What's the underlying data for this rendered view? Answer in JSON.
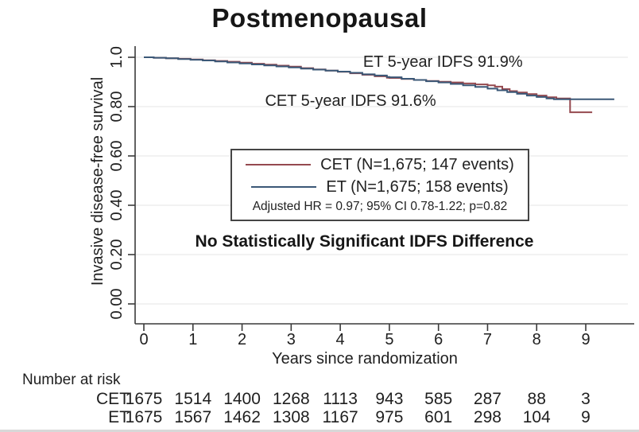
{
  "header": {
    "title": "Postmenopausal"
  },
  "colors": {
    "cet": "#95494f",
    "et": "#3b5877",
    "grid": "#ebebeb",
    "axis": "#3a3a3a",
    "text": "#1f1f1f"
  },
  "chart_data": {
    "type": "line",
    "subtype": "kaplan-meier-step",
    "title": "Postmenopausal",
    "xlabel": "Years since randomization",
    "ylabel": "Invasive disease-free survival",
    "xlim": [
      0,
      10
    ],
    "ylim": [
      0,
      1
    ],
    "x_ticks": [
      "0",
      "1",
      "2",
      "3",
      "4",
      "5",
      "6",
      "7",
      "8",
      "9"
    ],
    "y_ticks": [
      {
        "value": 0.0,
        "label": "0.00"
      },
      {
        "value": 0.2,
        "label": "0.20"
      },
      {
        "value": 0.4,
        "label": "0.40"
      },
      {
        "value": 0.6,
        "label": "0.60"
      },
      {
        "value": 0.8,
        "label": "0.80"
      },
      {
        "value": 1.0,
        "label": "1.0"
      }
    ],
    "grid": "horizontal",
    "legend_position": "center",
    "series": [
      {
        "name": "CET (N=1,675; 147 events)",
        "short_name": "CET",
        "color": "#95494f",
        "points": [
          [
            0,
            1.0
          ],
          [
            0.2,
            0.998
          ],
          [
            0.45,
            0.996
          ],
          [
            0.7,
            0.994
          ],
          [
            0.95,
            0.991
          ],
          [
            1.2,
            0.988
          ],
          [
            1.45,
            0.985
          ],
          [
            1.7,
            0.982
          ],
          [
            1.95,
            0.978
          ],
          [
            2.2,
            0.974
          ],
          [
            2.45,
            0.97
          ],
          [
            2.7,
            0.966
          ],
          [
            2.95,
            0.962
          ],
          [
            3.2,
            0.956
          ],
          [
            3.45,
            0.951
          ],
          [
            3.7,
            0.946
          ],
          [
            3.95,
            0.941
          ],
          [
            4.2,
            0.935
          ],
          [
            4.45,
            0.929
          ],
          [
            4.7,
            0.923
          ],
          [
            4.95,
            0.917
          ],
          [
            5.0,
            0.916
          ],
          [
            5.25,
            0.912
          ],
          [
            5.5,
            0.908
          ],
          [
            5.75,
            0.904
          ],
          [
            6.0,
            0.901
          ],
          [
            6.25,
            0.898
          ],
          [
            6.5,
            0.894
          ],
          [
            6.75,
            0.89
          ],
          [
            7.0,
            0.886
          ],
          [
            7.15,
            0.881
          ],
          [
            7.3,
            0.871
          ],
          [
            7.45,
            0.863
          ],
          [
            7.6,
            0.857
          ],
          [
            7.8,
            0.851
          ],
          [
            8.0,
            0.845
          ],
          [
            8.2,
            0.838
          ],
          [
            8.4,
            0.833
          ],
          [
            8.68,
            0.833
          ],
          [
            8.68,
            0.777
          ],
          [
            9.13,
            0.777
          ]
        ]
      },
      {
        "name": "ET (N=1,675; 158 events)",
        "short_name": "ET",
        "color": "#3b5877",
        "points": [
          [
            0,
            1.0
          ],
          [
            0.2,
            0.998
          ],
          [
            0.45,
            0.996
          ],
          [
            0.7,
            0.993
          ],
          [
            0.95,
            0.99
          ],
          [
            1.2,
            0.987
          ],
          [
            1.45,
            0.983
          ],
          [
            1.7,
            0.979
          ],
          [
            1.95,
            0.975
          ],
          [
            2.2,
            0.971
          ],
          [
            2.45,
            0.967
          ],
          [
            2.7,
            0.963
          ],
          [
            2.95,
            0.959
          ],
          [
            3.2,
            0.954
          ],
          [
            3.45,
            0.95
          ],
          [
            3.7,
            0.946
          ],
          [
            3.95,
            0.942
          ],
          [
            4.2,
            0.937
          ],
          [
            4.45,
            0.931
          ],
          [
            4.7,
            0.926
          ],
          [
            4.95,
            0.92
          ],
          [
            5.0,
            0.919
          ],
          [
            5.25,
            0.913
          ],
          [
            5.5,
            0.908
          ],
          [
            5.75,
            0.903
          ],
          [
            6.0,
            0.898
          ],
          [
            6.25,
            0.892
          ],
          [
            6.5,
            0.886
          ],
          [
            6.75,
            0.88
          ],
          [
            7.0,
            0.873
          ],
          [
            7.2,
            0.866
          ],
          [
            7.4,
            0.859
          ],
          [
            7.6,
            0.852
          ],
          [
            7.8,
            0.845
          ],
          [
            8.0,
            0.839
          ],
          [
            8.2,
            0.833
          ],
          [
            8.35,
            0.83
          ],
          [
            9.58,
            0.83
          ]
        ]
      }
    ],
    "annotations": [
      {
        "id": "et",
        "text": "ET 5-year IDFS 91.9%",
        "x": 6.09,
        "y": 0.984
      },
      {
        "id": "cet",
        "text": "CET 5-year IDFS 91.6%",
        "x": 4.21,
        "y": 0.826
      }
    ],
    "stats_note": "Adjusted HR = 0.97; 95% CI 0.78-1.22; p=0.82",
    "significance_note": "No Statistically Significant IDFS Difference"
  },
  "risk_table": {
    "header": "Number at risk",
    "rows": [
      {
        "label": "CET",
        "values": [
          "1675",
          "1514",
          "1400",
          "1268",
          "1113",
          "943",
          "585",
          "287",
          "88",
          "3"
        ]
      },
      {
        "label": "ET",
        "values": [
          "1675",
          "1567",
          "1462",
          "1308",
          "1167",
          "975",
          "601",
          "298",
          "104",
          "9"
        ]
      }
    ]
  }
}
